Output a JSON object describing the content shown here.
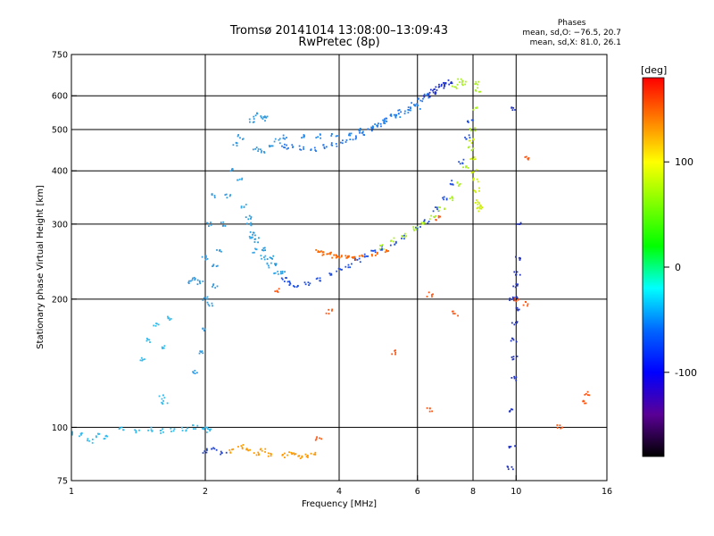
{
  "header": {
    "title_line1": "Tromsø 20141014 13:08:00–13:09:43",
    "title_line2": "RwPretec (8p)"
  },
  "phase_info": {
    "heading": "Phases",
    "line_o": "mean, sd,O: −76.5, 20.7",
    "line_x": "mean, sd,X:  81.0, 26.1"
  },
  "chart_data": {
    "type": "scatter",
    "xlabel": "Frequency [MHz]",
    "ylabel": "Stationary phase Virtual Height [km]",
    "x_scale": "log",
    "y_scale": "log",
    "xlim": [
      1,
      16
    ],
    "ylim": [
      75,
      750
    ],
    "x_ticks": [
      1,
      2,
      4,
      6,
      8,
      10,
      16
    ],
    "y_ticks": [
      75,
      100,
      200,
      300,
      400,
      500,
      600,
      750
    ],
    "grid_x": [
      2,
      4,
      6,
      8,
      10
    ],
    "grid_y": [
      100,
      200,
      300,
      400,
      500,
      600
    ],
    "colorbar": {
      "label": "[deg]",
      "range": [
        -180,
        180
      ],
      "ticks": [
        100,
        0,
        -100
      ],
      "colors": [
        "#ff0000",
        "#ff7f00",
        "#ffff00",
        "#7fff00",
        "#00ff00",
        "#00ffff",
        "#0066ff",
        "#0000ff",
        "#5a0096",
        "#000000"
      ]
    },
    "series": [
      {
        "points": [
          [
            1.0,
            97
          ],
          [
            1.05,
            96
          ],
          [
            1.1,
            93
          ],
          [
            1.15,
            96
          ],
          [
            1.2,
            95
          ],
          [
            1.3,
            99
          ],
          [
            1.4,
            98
          ],
          [
            1.5,
            99
          ],
          [
            1.6,
            98
          ],
          [
            1.7,
            99
          ],
          [
            1.8,
            99
          ],
          [
            1.9,
            100
          ],
          [
            2.0,
            99
          ],
          [
            2.05,
            98
          ]
        ],
        "color": "#33bbee"
      },
      {
        "points": [
          [
            1.45,
            145
          ],
          [
            1.5,
            160
          ],
          [
            1.55,
            175
          ],
          [
            1.6,
            155
          ],
          [
            1.65,
            180
          ],
          [
            1.6,
            118
          ],
          [
            1.62,
            114
          ]
        ],
        "color": "#33bbee"
      },
      {
        "points": [
          [
            1.85,
            220
          ],
          [
            1.9,
            222
          ],
          [
            1.95,
            218
          ],
          [
            2.0,
            200
          ],
          [
            2.05,
            195
          ],
          [
            2.1,
            215
          ],
          [
            2.1,
            240
          ],
          [
            2.15,
            260
          ],
          [
            2.2,
            300
          ],
          [
            2.25,
            350
          ],
          [
            2.3,
            400
          ],
          [
            2.35,
            460
          ],
          [
            2.4,
            480
          ],
          [
            2.0,
            250
          ],
          [
            2.05,
            300
          ],
          [
            2.1,
            350
          ],
          [
            2.0,
            170
          ],
          [
            1.95,
            150
          ],
          [
            1.9,
            135
          ]
        ],
        "color": "#3399dd"
      },
      {
        "points": [
          [
            2.4,
            380
          ],
          [
            2.45,
            330
          ],
          [
            2.5,
            300
          ],
          [
            2.55,
            280
          ],
          [
            2.6,
            260
          ],
          [
            2.7,
            250
          ],
          [
            2.8,
            240
          ],
          [
            2.9,
            230
          ]
        ],
        "color": "#33aaee"
      },
      {
        "points": [
          [
            2.5,
            310
          ],
          [
            2.55,
            285
          ],
          [
            2.6,
            275
          ],
          [
            2.7,
            262
          ],
          [
            2.8,
            250
          ],
          [
            2.9,
            240
          ],
          [
            3.0,
            230
          ]
        ],
        "color": "#2299dd"
      },
      {
        "points": [
          [
            2.6,
            450
          ],
          [
            2.7,
            445
          ],
          [
            2.8,
            460
          ],
          [
            2.9,
            470
          ],
          [
            2.55,
            525
          ],
          [
            2.6,
            540
          ],
          [
            2.7,
            535
          ],
          [
            2.75,
            530
          ]
        ],
        "color": "#3399dd"
      },
      {
        "points": [
          [
            3.0,
            222
          ],
          [
            3.1,
            218
          ],
          [
            3.2,
            216
          ],
          [
            3.4,
            218
          ],
          [
            3.6,
            222
          ],
          [
            3.8,
            228
          ],
          [
            4.0,
            234
          ],
          [
            4.2,
            240
          ],
          [
            4.4,
            246
          ],
          [
            4.6,
            252
          ],
          [
            4.8,
            258
          ],
          [
            5.0,
            264
          ],
          [
            5.3,
            270
          ],
          [
            5.6,
            280
          ],
          [
            6.0,
            292
          ],
          [
            6.3,
            305
          ],
          [
            6.6,
            325
          ],
          [
            6.9,
            345
          ],
          [
            7.2,
            375
          ],
          [
            7.5,
            420
          ],
          [
            7.8,
            480
          ],
          [
            7.9,
            520
          ]
        ],
        "color": "#1f4fe0"
      },
      {
        "points": [
          [
            3.0,
            458
          ],
          [
            3.1,
            455
          ],
          [
            3.3,
            452
          ],
          [
            3.5,
            450
          ],
          [
            3.7,
            455
          ],
          [
            3.9,
            460
          ],
          [
            4.1,
            468
          ],
          [
            4.3,
            478
          ],
          [
            4.5,
            488
          ],
          [
            4.7,
            500
          ],
          [
            4.9,
            512
          ],
          [
            5.1,
            525
          ],
          [
            5.3,
            538
          ],
          [
            5.5,
            550
          ],
          [
            5.7,
            560
          ],
          [
            5.9,
            572
          ],
          [
            6.1,
            585
          ],
          [
            6.3,
            600
          ]
        ],
        "color": "#2277ee"
      },
      {
        "points": [
          [
            3.0,
            480
          ],
          [
            3.3,
            480
          ],
          [
            3.6,
            482
          ],
          [
            3.9,
            485
          ],
          [
            4.2,
            490
          ],
          [
            4.5,
            498
          ],
          [
            4.8,
            510
          ],
          [
            5.1,
            522
          ],
          [
            5.4,
            535
          ],
          [
            5.7,
            550
          ],
          [
            6.0,
            565
          ]
        ],
        "color": "#2288ee"
      },
      {
        "points": [
          [
            6.3,
            600
          ],
          [
            6.5,
            615
          ],
          [
            6.7,
            625
          ],
          [
            6.9,
            640
          ],
          [
            7.1,
            645
          ],
          [
            6.6,
            610
          ],
          [
            6.8,
            630
          ]
        ],
        "color": "#2233cc"
      },
      {
        "points": [
          [
            3.6,
            258
          ],
          [
            3.7,
            256
          ],
          [
            3.8,
            255
          ],
          [
            3.9,
            253
          ],
          [
            4.0,
            252
          ],
          [
            4.1,
            251
          ],
          [
            4.2,
            250
          ],
          [
            4.3,
            250
          ],
          [
            4.5,
            252
          ],
          [
            4.8,
            255
          ],
          [
            5.1,
            258
          ]
        ],
        "color": "#ff6600"
      },
      {
        "points": [
          [
            5.0,
            265
          ],
          [
            5.3,
            275
          ],
          [
            5.6,
            282
          ],
          [
            5.9,
            292
          ],
          [
            6.2,
            300
          ],
          [
            6.5,
            310
          ],
          [
            6.8,
            325
          ],
          [
            7.1,
            345
          ],
          [
            7.4,
            372
          ],
          [
            7.7,
            410
          ],
          [
            7.9,
            450
          ],
          [
            8.0,
            500
          ],
          [
            8.1,
            560
          ],
          [
            8.2,
            620
          ],
          [
            8.2,
            640
          ],
          [
            7.6,
            640
          ],
          [
            7.5,
            650
          ],
          [
            7.3,
            630
          ]
        ],
        "color": "#aaee22"
      },
      {
        "points": [
          [
            7.9,
            470
          ],
          [
            8.0,
            430
          ],
          [
            8.05,
            400
          ],
          [
            8.1,
            380
          ],
          [
            8.15,
            360
          ],
          [
            8.2,
            340
          ],
          [
            8.25,
            330
          ],
          [
            8.3,
            325
          ]
        ],
        "color": "#ccee00"
      },
      {
        "points": [
          [
            2.3,
            88
          ],
          [
            2.4,
            90
          ],
          [
            2.5,
            89
          ],
          [
            2.6,
            87
          ],
          [
            2.7,
            88
          ],
          [
            2.8,
            86
          ],
          [
            3.0,
            86
          ],
          [
            3.1,
            87
          ],
          [
            3.2,
            86
          ],
          [
            3.3,
            85
          ],
          [
            3.4,
            86
          ],
          [
            3.5,
            87
          ]
        ],
        "color": "#ff9900"
      },
      {
        "points": [
          [
            2.0,
            88
          ],
          [
            2.1,
            89
          ],
          [
            2.2,
            87
          ]
        ],
        "color": "#2244cc"
      },
      {
        "points": [
          [
            9.7,
            80
          ],
          [
            9.8,
            90
          ],
          [
            9.8,
            110
          ],
          [
            9.85,
            130
          ],
          [
            9.9,
            145
          ],
          [
            9.9,
            160
          ],
          [
            9.95,
            175
          ],
          [
            10.0,
            190
          ],
          [
            10.0,
            200
          ],
          [
            10.0,
            215
          ],
          [
            10.05,
            230
          ],
          [
            10.1,
            250
          ],
          [
            10.1,
            300
          ],
          [
            9.8,
            560
          ],
          [
            9.8,
            200
          ]
        ],
        "color": "#2233bb"
      },
      {
        "points": [
          [
            6.4,
            205
          ],
          [
            6.4,
            110
          ],
          [
            7.3,
            185
          ],
          [
            5.3,
            150
          ],
          [
            3.8,
            187
          ],
          [
            3.6,
            94
          ],
          [
            10.5,
            195
          ],
          [
            10.6,
            430
          ],
          [
            12.5,
            100
          ],
          [
            14.5,
            120
          ],
          [
            14.3,
            115
          ],
          [
            2.9,
            210
          ],
          [
            6.7,
            310
          ],
          [
            10.0,
            200
          ]
        ],
        "color": "#ff5511"
      }
    ]
  }
}
